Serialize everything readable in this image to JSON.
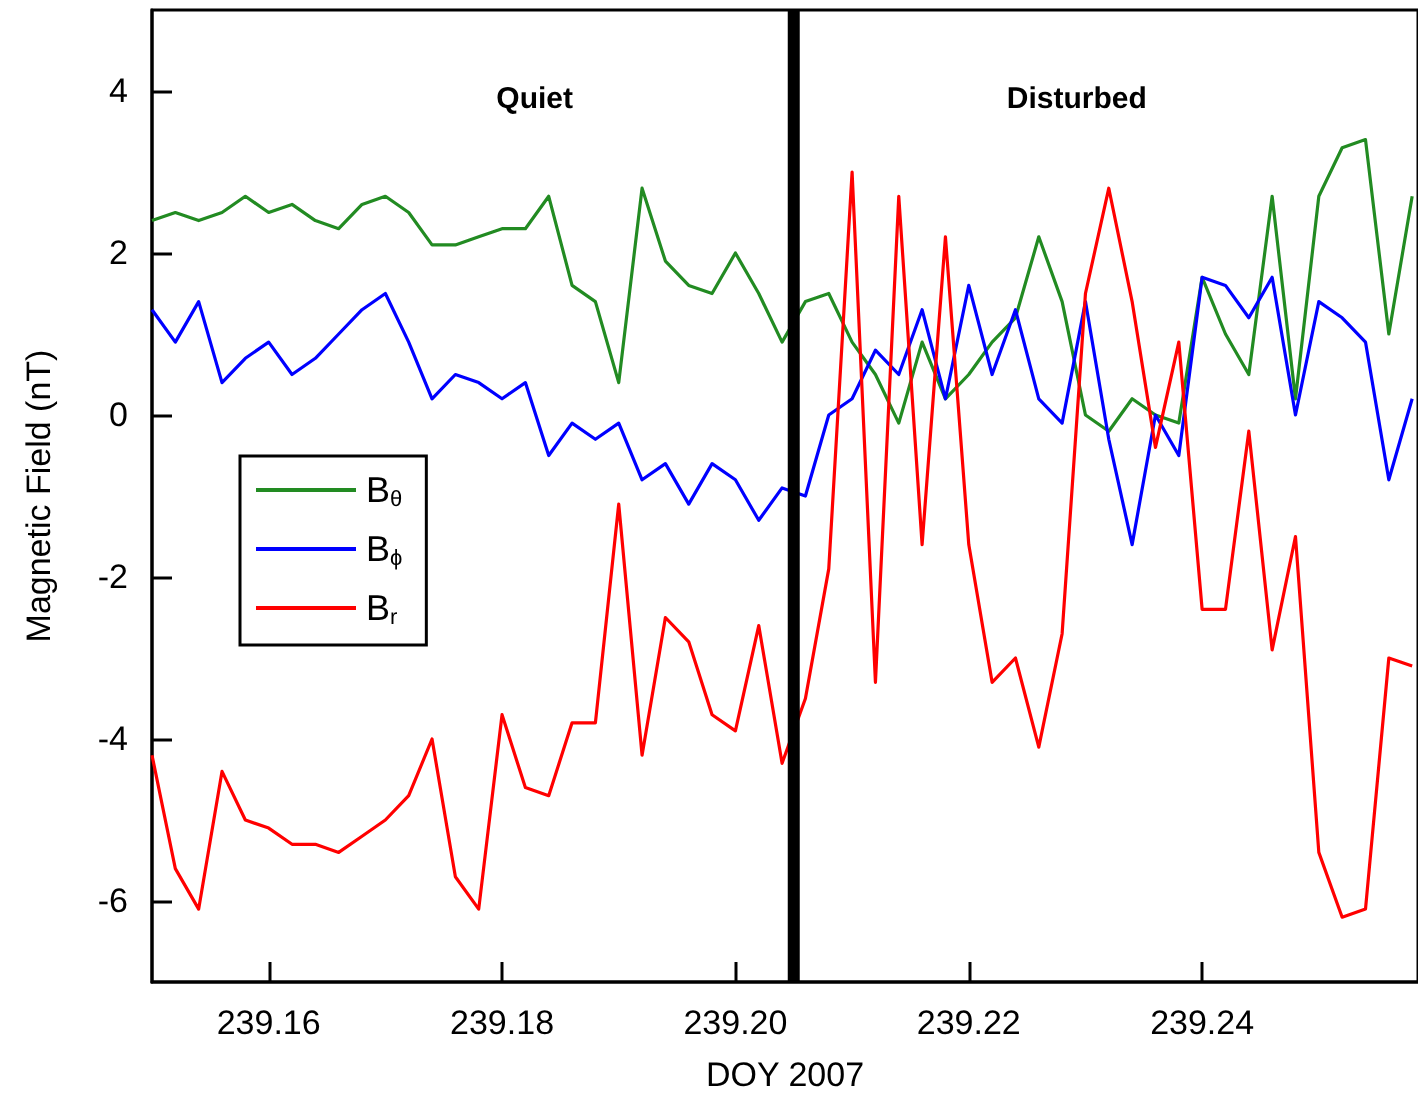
{
  "chart_data": {
    "type": "line",
    "xlabel": "DOY 2007",
    "ylabel": "Magnetic Field (nT)",
    "x": [
      239.15,
      239.152,
      239.154,
      239.156,
      239.158,
      239.16,
      239.162,
      239.164,
      239.166,
      239.168,
      239.17,
      239.172,
      239.174,
      239.176,
      239.178,
      239.18,
      239.182,
      239.184,
      239.186,
      239.188,
      239.19,
      239.192,
      239.194,
      239.196,
      239.198,
      239.2,
      239.202,
      239.204,
      239.206,
      239.208,
      239.21,
      239.212,
      239.214,
      239.216,
      239.218,
      239.22,
      239.222,
      239.224,
      239.226,
      239.228,
      239.23,
      239.232,
      239.234,
      239.236,
      239.238,
      239.24,
      239.242,
      239.244,
      239.246,
      239.248,
      239.25,
      239.252,
      239.254,
      239.256,
      239.258
    ],
    "series": [
      {
        "name": "B$_{θ}$",
        "color": "#228b22",
        "values": [
          2.4,
          2.5,
          2.4,
          2.5,
          2.7,
          2.5,
          2.6,
          2.4,
          2.3,
          2.6,
          2.7,
          2.5,
          2.1,
          2.1,
          2.2,
          2.3,
          2.3,
          2.7,
          1.6,
          1.4,
          0.4,
          2.8,
          1.9,
          1.6,
          1.5,
          2.0,
          1.5,
          0.9,
          1.4,
          1.5,
          0.9,
          0.5,
          -0.1,
          0.9,
          0.2,
          0.5,
          0.9,
          1.2,
          2.2,
          1.4,
          0.0,
          -0.2,
          0.2,
          0.0,
          -0.1,
          1.7,
          1.0,
          0.5,
          2.7,
          0.2,
          2.7,
          3.3,
          3.4,
          1.0,
          2.7
        ]
      },
      {
        "name": "B$_{ϕ}$",
        "color": "#0000ff",
        "values": [
          1.3,
          0.9,
          1.4,
          0.4,
          0.7,
          0.9,
          0.5,
          0.7,
          1.0,
          1.3,
          1.5,
          0.9,
          0.2,
          0.5,
          0.4,
          0.2,
          0.4,
          -0.5,
          -0.1,
          -0.3,
          -0.1,
          -0.8,
          -0.6,
          -1.1,
          -0.6,
          -0.8,
          -1.3,
          -0.9,
          -1.0,
          0.0,
          0.2,
          0.8,
          0.5,
          1.3,
          0.2,
          1.6,
          0.5,
          1.3,
          0.2,
          -0.1,
          1.4,
          -0.3,
          -1.6,
          0.0,
          -0.5,
          1.7,
          1.6,
          1.2,
          1.7,
          0.0,
          1.4,
          1.2,
          0.9,
          -0.8,
          0.2
        ]
      },
      {
        "name": "B$_{r}$",
        "color": "#ff0000",
        "values": [
          -4.2,
          -5.6,
          -6.1,
          -4.4,
          -5.0,
          -5.1,
          -5.3,
          -5.3,
          -5.4,
          -5.2,
          -5.0,
          -4.7,
          -4.0,
          -5.7,
          -6.1,
          -3.7,
          -4.6,
          -4.7,
          -3.8,
          -3.8,
          -1.1,
          -4.2,
          -2.5,
          -2.8,
          -3.7,
          -3.9,
          -2.6,
          -4.3,
          -3.5,
          -1.9,
          3.0,
          -3.3,
          2.7,
          -1.6,
          2.2,
          -1.6,
          -3.3,
          -3.0,
          -4.1,
          -2.7,
          1.5,
          2.8,
          1.4,
          -0.4,
          0.9,
          -2.4,
          -2.4,
          -0.2,
          -2.9,
          -1.5,
          -5.4,
          -6.2,
          -6.1,
          -3.0,
          -3.1
        ]
      }
    ],
    "xlim": [
      239.15,
      239.2585
    ],
    "xticks": [
      239.16,
      239.18,
      {
        "value": 239.2,
        "label": "239.20"
      },
      239.22,
      239.24
    ],
    "ylim": [
      -7,
      5
    ],
    "yticks": [
      -6,
      -4,
      -2,
      0,
      2,
      4
    ],
    "ref_lines": [
      {
        "axis": "x",
        "value": 239.205,
        "color": "#000000"
      }
    ],
    "annotations": [
      "Quiet",
      "Disturbed"
    ],
    "legend": "left",
    "grid": false,
    "marker": "none",
    "line_style": "solid"
  }
}
